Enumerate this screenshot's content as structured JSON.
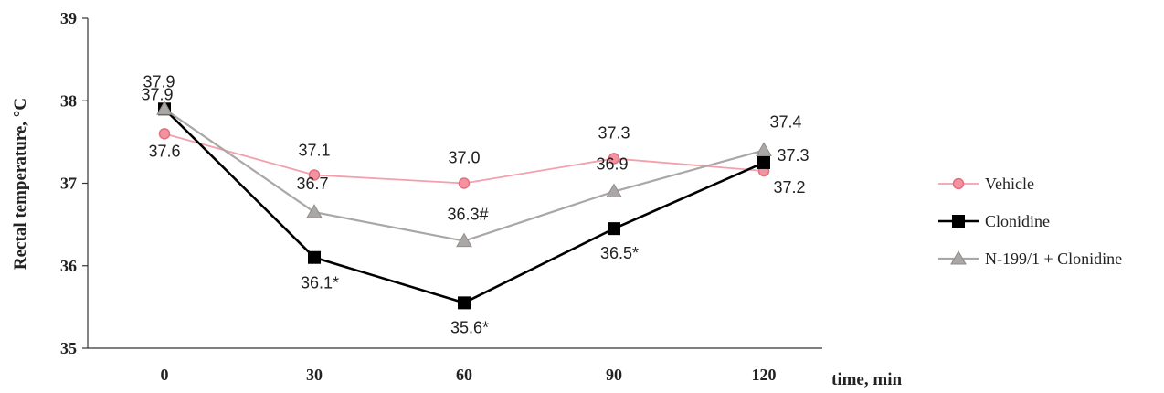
{
  "chart_data": {
    "type": "line",
    "x": [
      0,
      30,
      60,
      90,
      120
    ],
    "xlabel": "time, min",
    "ylabel": "Rectal temperature, °C",
    "ylim": [
      35,
      39
    ],
    "yticks": [
      35,
      36,
      37,
      38,
      39
    ],
    "grid": false,
    "legend_position": "right",
    "series": [
      {
        "name": "Vehicle",
        "values": [
          37.6,
          37.1,
          37.0,
          37.3,
          37.15
        ],
        "labels": [
          "37.6",
          "37.1",
          "37.0",
          "37.3",
          "37.2"
        ],
        "marker": "circle",
        "line_color": "#f2a0ab",
        "marker_fill": "#f5929f",
        "marker_stroke": "#e0707f"
      },
      {
        "name": "Clonidine",
        "values": [
          37.9,
          36.1,
          35.55,
          36.45,
          37.25
        ],
        "labels": [
          "37.9",
          "36.1*",
          "35.6*",
          "36.5*",
          "37.3"
        ],
        "marker": "square",
        "line_color": "#000000",
        "marker_fill": "#000000",
        "marker_stroke": "#000000"
      },
      {
        "name": "N-199/1 + Clonidine",
        "values": [
          37.9,
          36.65,
          36.3,
          36.9,
          37.4
        ],
        "labels": [
          "37.9",
          "36.7",
          "36.3#",
          "36.9",
          "37.4"
        ],
        "marker": "triangle",
        "line_color": "#aaa7a6",
        "marker_fill": "#aaa7a6",
        "marker_stroke": "#8f8c8b"
      }
    ]
  }
}
